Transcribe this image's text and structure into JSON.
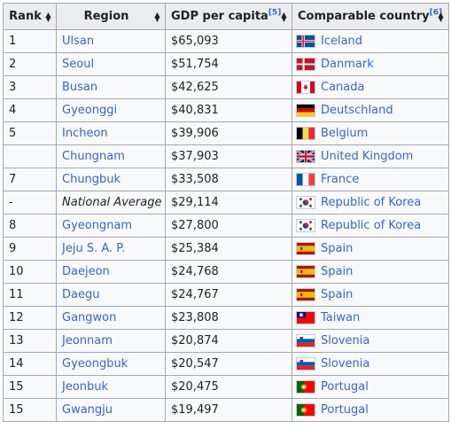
{
  "headers": {
    "rank": "Rank",
    "region": "Region",
    "gdp": "GDP per capita",
    "gdp_ref": "[5]",
    "country": "Comparable country",
    "country_ref": "[6]"
  },
  "rows": [
    {
      "rank": "1",
      "region": "Ulsan",
      "gdp": "$65,093",
      "country": "Iceland",
      "flag": "iceland"
    },
    {
      "rank": "2",
      "region": "Seoul",
      "gdp": "$51,754",
      "country": "Danmark",
      "flag": "denmark"
    },
    {
      "rank": "3",
      "region": "Busan",
      "gdp": "$42,625",
      "country": "Canada",
      "flag": "canada"
    },
    {
      "rank": "4",
      "region": "Gyeonggi",
      "gdp": "$40,831",
      "country": "Deutschland",
      "flag": "germany"
    },
    {
      "rank": "5",
      "region": "Incheon",
      "gdp": "$39,906",
      "country": "Belgium",
      "flag": "belgium"
    },
    {
      "rank": "",
      "region": "Chungnam",
      "gdp": "$37,903",
      "country": "United Kingdom",
      "flag": "uk"
    },
    {
      "rank": "7",
      "region": "Chungbuk",
      "gdp": "$33,508",
      "country": "France",
      "flag": "france"
    },
    {
      "rank": "-",
      "region": "National Average",
      "gdp": "$29,114",
      "country": "Republic of Korea",
      "flag": "korea",
      "italic": true
    },
    {
      "rank": "8",
      "region": "Gyeongnam",
      "gdp": "$27,800",
      "country": "Republic of Korea",
      "flag": "korea"
    },
    {
      "rank": "9",
      "region": "Jeju S. A. P.",
      "gdp": "$25,384",
      "country": "Spain",
      "flag": "spain"
    },
    {
      "rank": "10",
      "region": "Daejeon",
      "gdp": "$24,768",
      "country": "Spain",
      "flag": "spain"
    },
    {
      "rank": "11",
      "region": "Daegu",
      "gdp": "$24,767",
      "country": "Spain",
      "flag": "spain"
    },
    {
      "rank": "12",
      "region": "Gangwon",
      "gdp": "$23,808",
      "country": "Taiwan",
      "flag": "taiwan"
    },
    {
      "rank": "13",
      "region": "Jeonnam",
      "gdp": "$20,874",
      "country": "Slovenia",
      "flag": "slovenia"
    },
    {
      "rank": "14",
      "region": "Gyeongbuk",
      "gdp": "$20,547",
      "country": "Slovenia",
      "flag": "slovenia"
    },
    {
      "rank": "15",
      "region": "Jeonbuk",
      "gdp": "$20,475",
      "country": "Portugal",
      "flag": "portugal"
    },
    {
      "rank": "15",
      "region": "Gwangju",
      "gdp": "$19,497",
      "country": "Portugal",
      "flag": "portugal"
    }
  ],
  "colors": {
    "link": "#3366cc",
    "header_bg": "#eaecf0",
    "cell_bg": "#f8f9fa",
    "border": "#a2a9b1"
  }
}
